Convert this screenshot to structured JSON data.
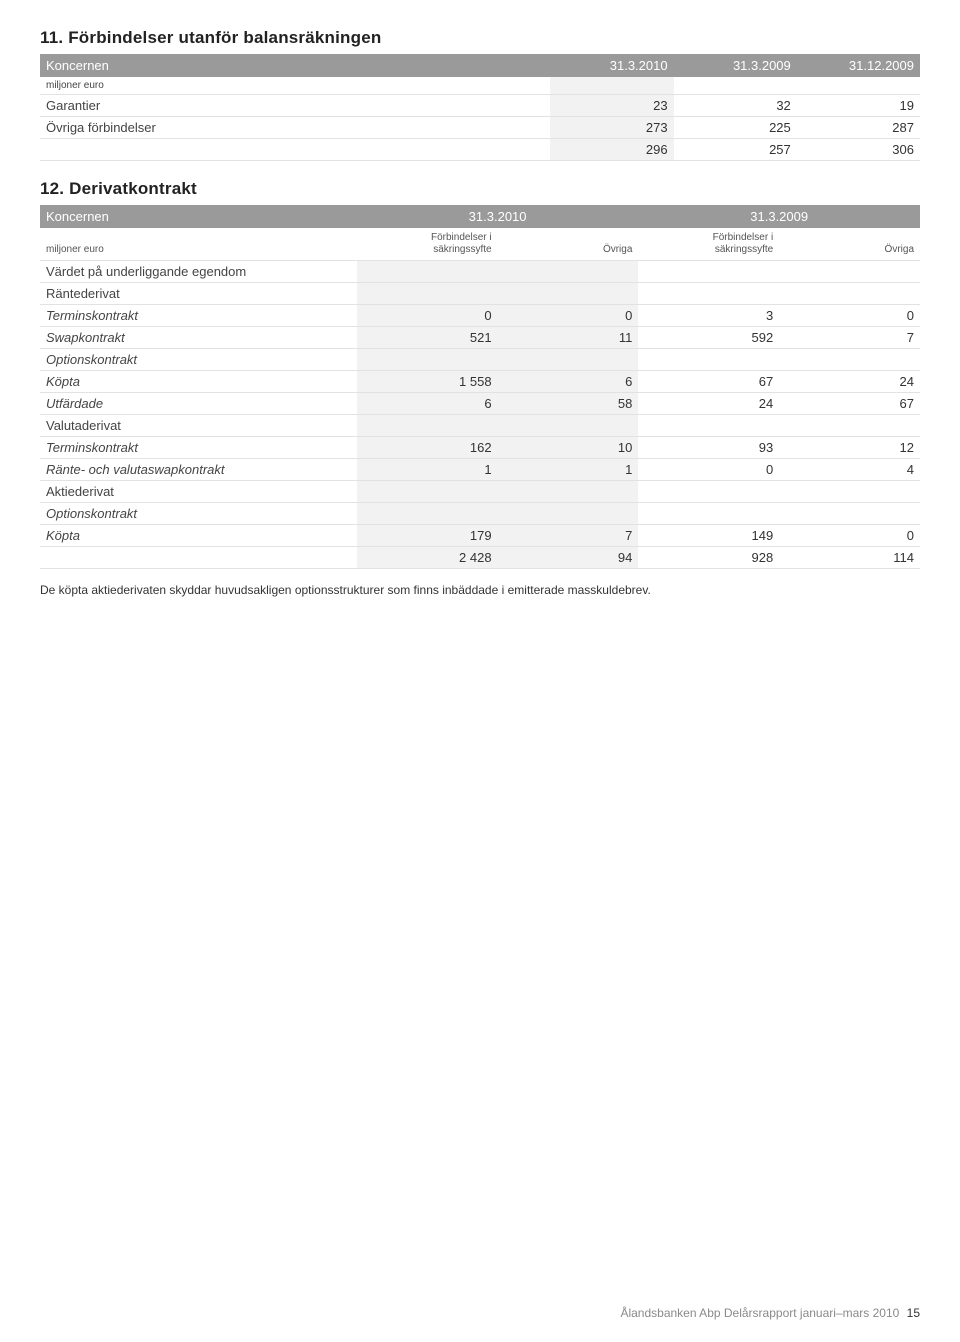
{
  "section11": {
    "title": "11. Förbindelser utanför balansräkningen",
    "header_label": "Koncernen",
    "periods": [
      "31.3.2010",
      "31.3.2009",
      "31.12.2009"
    ],
    "unit": "miljoner euro",
    "rows": [
      {
        "label": "Garantier",
        "v": [
          "23",
          "32",
          "19"
        ]
      },
      {
        "label": "Övriga förbindelser",
        "v": [
          "273",
          "225",
          "287"
        ]
      }
    ],
    "total": {
      "v": [
        "296",
        "257",
        "306"
      ]
    }
  },
  "section12": {
    "title": "12. Derivatkontrakt",
    "header_label": "Koncernen",
    "periods": [
      "31.3.2010",
      "31.3.2009"
    ],
    "unit": "miljoner euro",
    "subheaders_a": "Förbindelser i\nsäkringssyfte",
    "subheaders_b": "Övriga",
    "rows": [
      {
        "label": "Värdet på underliggande egendom",
        "indent": 0,
        "v": [
          "",
          "",
          "",
          ""
        ]
      },
      {
        "label": "Räntederivat",
        "indent": 1,
        "v": [
          "",
          "",
          "",
          ""
        ]
      },
      {
        "label": "Terminskontrakt",
        "indent": 2,
        "italic": true,
        "v": [
          "0",
          "0",
          "3",
          "0"
        ]
      },
      {
        "label": "Swapkontrakt",
        "indent": 2,
        "italic": true,
        "v": [
          "521",
          "11",
          "592",
          "7"
        ]
      },
      {
        "label": "Optionskontrakt",
        "indent": 2,
        "italic": true,
        "v": [
          "",
          "",
          "",
          ""
        ]
      },
      {
        "label": "Köpta",
        "indent": 3,
        "italic": true,
        "v": [
          "1 558",
          "6",
          "67",
          "24"
        ]
      },
      {
        "label": "Utfärdade",
        "indent": 3,
        "italic": true,
        "v": [
          "6",
          "58",
          "24",
          "67"
        ]
      },
      {
        "label": "Valutaderivat",
        "indent": 1,
        "v": [
          "",
          "",
          "",
          ""
        ]
      },
      {
        "label": "Terminskontrakt",
        "indent": 2,
        "italic": true,
        "v": [
          "162",
          "10",
          "93",
          "12"
        ]
      },
      {
        "label": "Ränte- och valutaswapkontrakt",
        "indent": 2,
        "italic": true,
        "v": [
          "1",
          "1",
          "0",
          "4"
        ]
      },
      {
        "label": "Aktiederivat",
        "indent": 1,
        "v": [
          "",
          "",
          "",
          ""
        ]
      },
      {
        "label": "Optionskontrakt",
        "indent": 2,
        "italic": true,
        "v": [
          "",
          "",
          "",
          ""
        ]
      },
      {
        "label": "Köpta",
        "indent": 3,
        "italic": true,
        "v": [
          "179",
          "7",
          "149",
          "0"
        ]
      }
    ],
    "total": {
      "v": [
        "2 428",
        "94",
        "928",
        "114"
      ]
    }
  },
  "footnote": "De köpta aktiederivaten skyddar huvudsakligen optionsstrukturer som finns inbäddade i emitterade masskuldebrev.",
  "footer": {
    "text": "Ålandsbanken Abp Delårsrapport januari–mars 2010",
    "page": "15"
  },
  "style": {
    "header_bg": "#9a9a9a",
    "row_border": "#e2e2e2",
    "highlight_bg": "#f2f2f2",
    "text_color": "#333333"
  }
}
